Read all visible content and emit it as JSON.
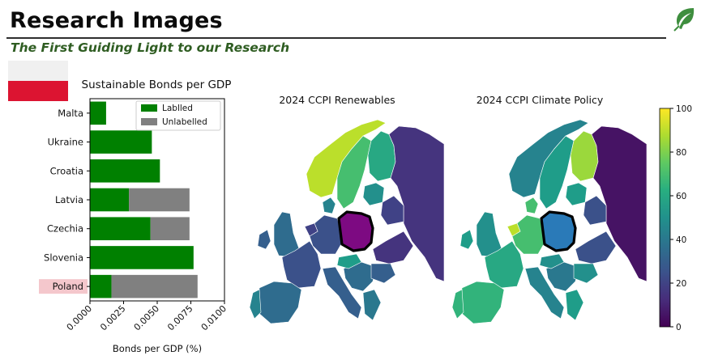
{
  "header": {
    "title": "Research Images",
    "subtitle": "The First Guiding Light to our Research"
  },
  "colors": {
    "labelled": "#008000",
    "unlabelled": "#808080",
    "highlight": "#f4c7cc",
    "flag_white": "#f0f0f0",
    "flag_red": "#dc1431",
    "accent_green": "#2f5d22"
  },
  "chart_data": [
    {
      "type": "bar",
      "orientation": "horizontal",
      "stacked": true,
      "title": "Sustainable Bonds per GDP",
      "xlabel": "Bonds per GDP (%)",
      "ylabel": "",
      "xlim": [
        0,
        0.01
      ],
      "xticks": [
        "0.0000",
        "0.0025",
        "0.0050",
        "0.0075",
        "0.0100"
      ],
      "xtick_values": [
        0,
        0.0025,
        0.005,
        0.0075,
        0.01
      ],
      "categories": [
        "Malta",
        "Ukraine",
        "Croatia",
        "Latvia",
        "Czechia",
        "Slovenia",
        "Poland"
      ],
      "highlighted_category": "Poland",
      "legend": "top-right",
      "series": [
        {
          "name": "Lablled",
          "values": [
            0.0012,
            0.0046,
            0.0052,
            0.0029,
            0.0045,
            0.0077,
            0.0016
          ]
        },
        {
          "name": "Unlabelled",
          "values": [
            0,
            0,
            0,
            0.0045,
            0.0029,
            0,
            0.0064
          ]
        }
      ]
    },
    {
      "type": "heatmap",
      "subtype": "choropleth",
      "title": "2024 CCPI Renewables",
      "highlighted_region": "Poland",
      "regions": [
        {
          "region": "Norway",
          "value": 90
        },
        {
          "region": "Sweden",
          "value": 70
        },
        {
          "region": "Finland",
          "value": 60
        },
        {
          "region": "Russia",
          "value": 15
        },
        {
          "region": "Denmark",
          "value": 45
        },
        {
          "region": "United Kingdom",
          "value": 35
        },
        {
          "region": "Ireland",
          "value": 30
        },
        {
          "region": "France",
          "value": 25
        },
        {
          "region": "Spain",
          "value": 35
        },
        {
          "region": "Portugal",
          "value": 45
        },
        {
          "region": "Germany",
          "value": 25
        },
        {
          "region": "Netherlands",
          "value": 20
        },
        {
          "region": "Poland",
          "value": 5
        },
        {
          "region": "Baltics",
          "value": 50
        },
        {
          "region": "Belarus",
          "value": 20
        },
        {
          "region": "Ukraine",
          "value": 15
        },
        {
          "region": "Italy",
          "value": 30
        },
        {
          "region": "Balkans",
          "value": 35
        },
        {
          "region": "Greece",
          "value": 40
        },
        {
          "region": "Romania",
          "value": 30
        },
        {
          "region": "Austria",
          "value": 55
        }
      ]
    },
    {
      "type": "heatmap",
      "subtype": "choropleth",
      "title": "2024 CCPI Climate Policy",
      "highlighted_region": "Poland",
      "regions": [
        {
          "region": "Norway",
          "value": 45
        },
        {
          "region": "Sweden",
          "value": 55
        },
        {
          "region": "Finland",
          "value": 85
        },
        {
          "region": "Russia",
          "value": 5
        },
        {
          "region": "Denmark",
          "value": 70
        },
        {
          "region": "United Kingdom",
          "value": 50
        },
        {
          "region": "Ireland",
          "value": 55
        },
        {
          "region": "France",
          "value": 60
        },
        {
          "region": "Spain",
          "value": 65
        },
        {
          "region": "Portugal",
          "value": 65
        },
        {
          "region": "Germany",
          "value": 70
        },
        {
          "region": "Netherlands",
          "value": 90
        },
        {
          "region": "Poland",
          "value": 35
        },
        {
          "region": "Baltics",
          "value": 55
        },
        {
          "region": "Belarus",
          "value": 25
        },
        {
          "region": "Ukraine",
          "value": 25
        },
        {
          "region": "Italy",
          "value": 45
        },
        {
          "region": "Balkans",
          "value": 40
        },
        {
          "region": "Greece",
          "value": 55
        },
        {
          "region": "Romania",
          "value": 50
        },
        {
          "region": "Austria",
          "value": 50
        }
      ]
    },
    {
      "type": "colorbar",
      "colormap": "viridis",
      "range": [
        0,
        100
      ],
      "ticks": [
        "0",
        "20",
        "40",
        "60",
        "80",
        "100"
      ],
      "tick_values": [
        0,
        20,
        40,
        60,
        80,
        100
      ]
    }
  ]
}
